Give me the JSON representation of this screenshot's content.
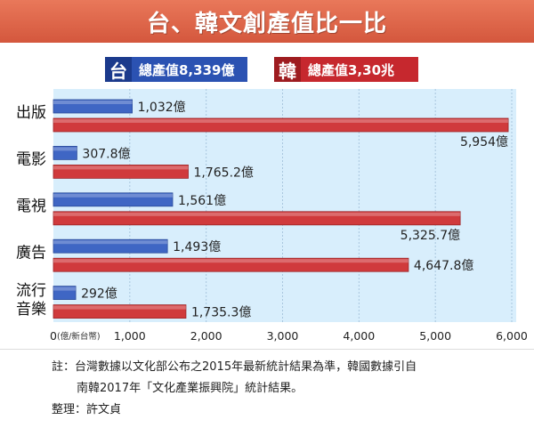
{
  "title": "台、韓文創產值比一比",
  "legend": [
    {
      "tag": "台",
      "text": "總產值8,339億",
      "color": "#2b52b2",
      "tag_color": "#1b3a8c"
    },
    {
      "tag": "韓",
      "text": "總產值3,30兆",
      "color": "#c6282e",
      "tag_color": "#9e1c20"
    }
  ],
  "chart_data": {
    "type": "bar",
    "orientation": "horizontal",
    "categories": [
      "出版",
      "電影",
      "電視",
      "廣告",
      "流行音樂"
    ],
    "category_lines": [
      [
        "出版"
      ],
      [
        "電影"
      ],
      [
        "電視"
      ],
      [
        "廣告"
      ],
      [
        "流行",
        "音樂"
      ]
    ],
    "series": [
      {
        "name": "台",
        "values": [
          1032,
          307.8,
          1561,
          1493,
          292
        ],
        "labels": [
          "1,032億",
          "307.8億",
          "1,561億",
          "1,493億",
          "292億"
        ],
        "color": "#3f66c4"
      },
      {
        "name": "韓",
        "values": [
          5954,
          1765.2,
          5325.7,
          4647.8,
          1735.3
        ],
        "labels": [
          "5,954億",
          "1,765.2億",
          "5,325.7億",
          "4,647.8億",
          "1,735.3億"
        ],
        "color": "#d03a3c"
      }
    ],
    "xlim": [
      0,
      6000
    ],
    "xticks": [
      0,
      1000,
      2000,
      3000,
      4000,
      5000,
      6000
    ],
    "xtick_labels": [
      "0",
      "1,000",
      "2,000",
      "3,000",
      "4,000",
      "5,000",
      "6,000"
    ],
    "xunit": "(億/新台幣)"
  },
  "note": {
    "line1": "註：台灣數據以文化部公布之2015年最新統計結果為準，韓國數據引自",
    "line2": "南韓2017年「文化產業振興院」統計結果。",
    "line3": "整理：許文貞"
  }
}
